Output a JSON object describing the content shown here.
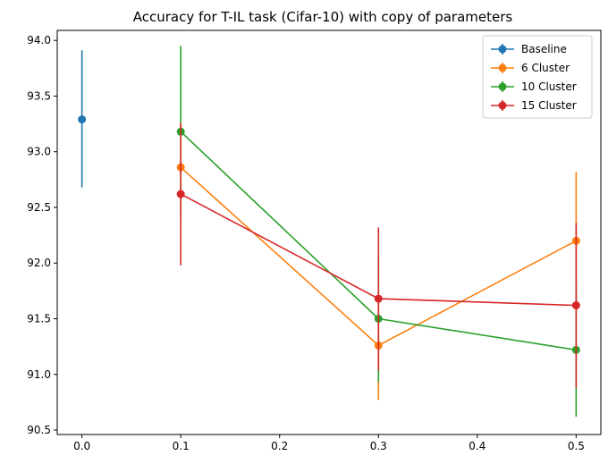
{
  "chart_data": {
    "type": "line",
    "title": "Accuracy for T-IL task (Cifar-10) with copy of parameters",
    "xlabel": "",
    "ylabel": "",
    "xlim": [
      -0.025,
      0.525
    ],
    "ylim": [
      90.46,
      94.09
    ],
    "xticks": [
      0.0,
      0.1,
      0.2,
      0.3,
      0.4,
      0.5
    ],
    "xtick_labels": [
      "0.0",
      "0.1",
      "0.2",
      "0.3",
      "0.4",
      "0.5"
    ],
    "yticks": [
      90.5,
      91.0,
      91.5,
      92.0,
      92.5,
      93.0,
      93.5,
      94.0
    ],
    "ytick_labels": [
      "90.5",
      "91.0",
      "91.5",
      "92.0",
      "92.5",
      "93.0",
      "93.5",
      "94.0"
    ],
    "grid": false,
    "legend_position": "top-right",
    "error_bars": true,
    "series": [
      {
        "name": "Baseline",
        "color": "#1f77b4",
        "x": [
          0.0
        ],
        "y": [
          93.29
        ],
        "yerr_low": [
          92.68
        ],
        "yerr_high": [
          93.91
        ]
      },
      {
        "name": "6 Cluster",
        "color": "#ff7f0e",
        "x": [
          0.1,
          0.3,
          0.5
        ],
        "y": [
          92.86,
          91.26,
          92.2
        ],
        "yerr_low": [
          92.47,
          90.77,
          91.58
        ],
        "yerr_high": [
          93.25,
          91.75,
          92.82
        ]
      },
      {
        "name": "10 Cluster",
        "color": "#2ca02c",
        "x": [
          0.1,
          0.3,
          0.5
        ],
        "y": [
          93.18,
          91.5,
          91.22
        ],
        "yerr_low": [
          92.41,
          90.93,
          90.62
        ],
        "yerr_high": [
          93.95,
          92.07,
          91.82
        ]
      },
      {
        "name": "15 Cluster",
        "color": "#d62728",
        "x": [
          0.1,
          0.3,
          0.5
        ],
        "y": [
          92.62,
          91.68,
          91.62
        ],
        "yerr_low": [
          91.98,
          91.04,
          90.88
        ],
        "yerr_high": [
          93.26,
          92.32,
          92.36
        ]
      }
    ]
  }
}
